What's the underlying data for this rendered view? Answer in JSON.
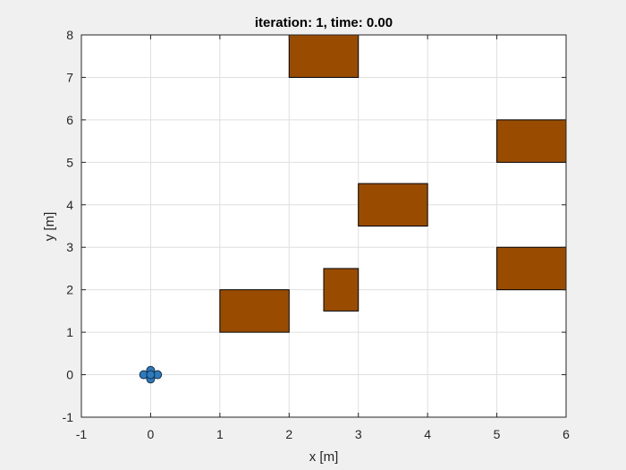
{
  "chart_data": {
    "type": "scatter",
    "title": "iteration: 1, time: 0.00",
    "xlabel": "x [m]",
    "ylabel": "y [m]",
    "xlim": [
      -1,
      6
    ],
    "ylim": [
      -1,
      8
    ],
    "xticks": [
      "-1",
      "0",
      "1",
      "2",
      "3",
      "4",
      "5",
      "6"
    ],
    "yticks": [
      "-1",
      "0",
      "1",
      "2",
      "3",
      "4",
      "5",
      "6",
      "7",
      "8"
    ],
    "grid": true,
    "obstacles": [
      {
        "x": [
          1,
          2
        ],
        "y": [
          1,
          2
        ]
      },
      {
        "x": [
          2.5,
          3
        ],
        "y": [
          1.5,
          2.5
        ]
      },
      {
        "x": [
          3,
          4
        ],
        "y": [
          3.5,
          4.5
        ]
      },
      {
        "x": [
          2,
          3
        ],
        "y": [
          7,
          8
        ]
      },
      {
        "x": [
          5,
          6
        ],
        "y": [
          5,
          6
        ]
      },
      {
        "x": [
          5,
          6
        ],
        "y": [
          2,
          3
        ]
      }
    ],
    "agents": [
      {
        "x": 0,
        "y": 0.1
      },
      {
        "x": 0,
        "y": -0.1
      },
      {
        "x": -0.1,
        "y": 0
      },
      {
        "x": 0.1,
        "y": 0
      },
      {
        "x": 0,
        "y": 0
      }
    ],
    "colors": {
      "obstacle": "#994c00",
      "agent": "#2b7bbf",
      "grid": "#dfdfdf",
      "background": "#f0f0f0",
      "plot_area": "#ffffff"
    }
  }
}
